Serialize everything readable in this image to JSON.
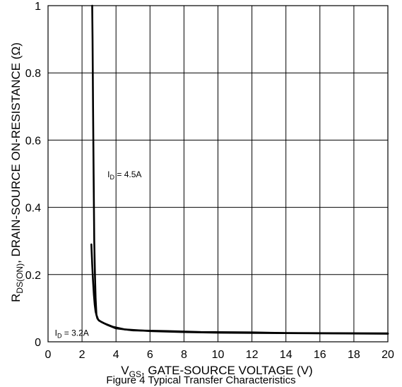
{
  "chart_data": {
    "type": "line",
    "title": "",
    "caption": "Figure 4  Typical Transfer Characteristics",
    "xlabel": {
      "main": "V",
      "sub": "GS",
      "rest": ", GATE-SOURCE VOLTAGE (V)"
    },
    "ylabel": {
      "main": "R",
      "sub": "DS(ON)",
      "rest": ", DRAIN-SOURCE ON-RESISTANCE (Ω)"
    },
    "xlim": [
      0,
      20
    ],
    "ylim": [
      0,
      1
    ],
    "grid": true,
    "x_ticks": [
      "0",
      "2",
      "4",
      "6",
      "8",
      "10",
      "12",
      "14",
      "16",
      "18",
      "20"
    ],
    "y_ticks": [
      "0",
      "0.2",
      "0.4",
      "0.6",
      "0.8",
      "1"
    ],
    "series": [
      {
        "name": "I_D = 4.5A",
        "label": {
          "main": "I",
          "sub": "D",
          "rest": " = 4.5A"
        },
        "label_at": [
          3.5,
          0.49
        ],
        "x": [
          2.6,
          2.62,
          2.65,
          2.68,
          2.72,
          2.76,
          2.8,
          2.85,
          2.95,
          3.1,
          3.5,
          4.0,
          5.0,
          7.0,
          9.0,
          12.0,
          14.0,
          20.0
        ],
        "y": [
          1.0,
          0.9,
          0.7,
          0.5,
          0.3,
          0.2,
          0.13,
          0.08,
          0.066,
          0.06,
          0.05,
          0.04,
          0.034,
          0.032,
          0.029,
          0.028,
          0.026,
          0.025
        ]
      },
      {
        "name": "I_D = 3.2A",
        "label": {
          "main": "I",
          "sub": "D",
          "rest": " = 3.2A"
        },
        "label_at": [
          0.4,
          0.018
        ],
        "x": [
          2.55,
          2.6,
          2.65,
          2.7,
          2.75,
          2.8,
          2.9,
          3.0,
          3.3,
          3.8,
          4.5,
          6.0,
          8.0,
          10.0,
          13.0,
          20.0
        ],
        "y": [
          0.29,
          0.23,
          0.18,
          0.14,
          0.11,
          0.09,
          0.07,
          0.063,
          0.055,
          0.045,
          0.037,
          0.032,
          0.029,
          0.027,
          0.026,
          0.024
        ]
      }
    ]
  }
}
